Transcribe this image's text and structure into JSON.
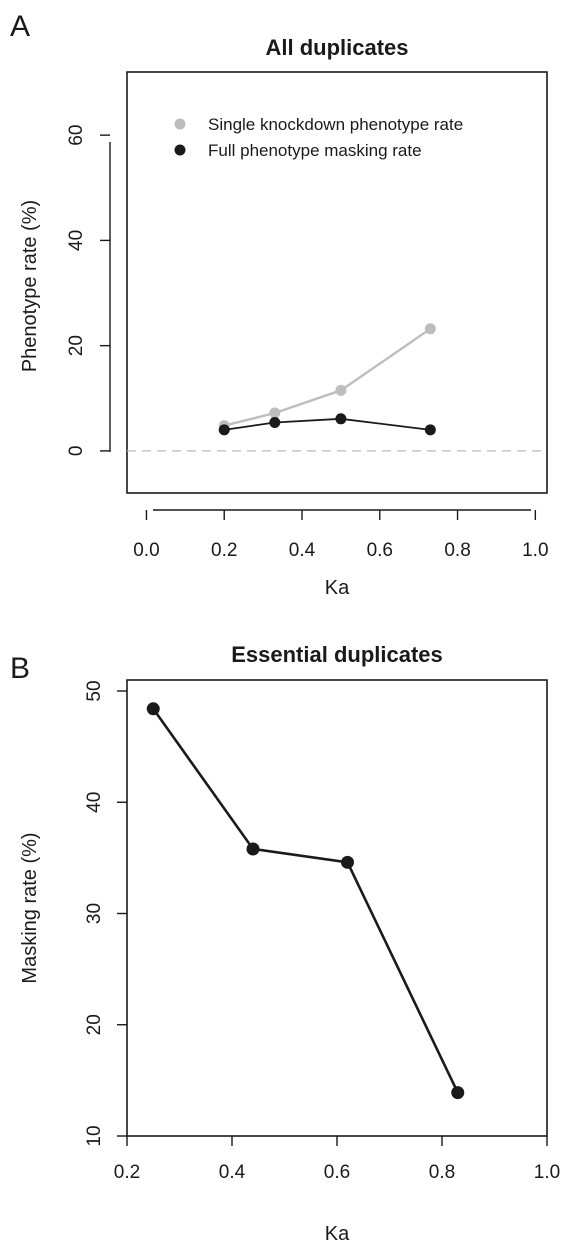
{
  "chart_data": [
    {
      "panel": "A",
      "type": "line",
      "title": "All duplicates",
      "xlabel": "Ka",
      "ylabel": "Phenotype rate (%)",
      "xlim": [
        -0.05,
        1.03
      ],
      "ylim": [
        -8,
        72
      ],
      "xticks": [
        0.0,
        0.2,
        0.4,
        0.6,
        0.8,
        1.0
      ],
      "xtick_labels": [
        "0.0",
        "0.2",
        "0.4",
        "0.6",
        "0.8",
        "1.0"
      ],
      "yticks": [
        0,
        20,
        40,
        60
      ],
      "ytick_labels": [
        "0",
        "20",
        "40",
        "60"
      ],
      "reference_line": {
        "y": 0,
        "style": "dashed",
        "color": "#bdbdbd"
      },
      "legend_position": "top-left",
      "grid": false,
      "series": [
        {
          "name": "Single knockdown phenotype rate",
          "color": "#bdbdbd",
          "x": [
            0.2,
            0.33,
            0.5,
            0.73
          ],
          "y": [
            4.8,
            7.2,
            11.5,
            23.2
          ]
        },
        {
          "name": "Full phenotype masking rate",
          "color": "#1a1a1a",
          "x": [
            0.2,
            0.33,
            0.5,
            0.73
          ],
          "y": [
            4.0,
            5.4,
            6.1,
            4.0
          ]
        }
      ]
    },
    {
      "panel": "B",
      "type": "line",
      "title": "Essential duplicates",
      "xlabel": "Ka",
      "ylabel": "Masking rate (%)",
      "xlim": [
        0.2,
        1.0
      ],
      "ylim": [
        10,
        51
      ],
      "xticks": [
        0.2,
        0.4,
        0.6,
        0.8,
        1.0
      ],
      "xtick_labels": [
        "0.2",
        "0.4",
        "0.6",
        "0.8",
        "1.0"
      ],
      "yticks": [
        10,
        20,
        30,
        40,
        50
      ],
      "ytick_labels": [
        "10",
        "20",
        "30",
        "40",
        "50"
      ],
      "grid": false,
      "series": [
        {
          "color": "#1a1a1a",
          "x": [
            0.25,
            0.44,
            0.62,
            0.83
          ],
          "y": [
            48.4,
            35.8,
            34.6,
            13.9
          ]
        }
      ]
    }
  ]
}
